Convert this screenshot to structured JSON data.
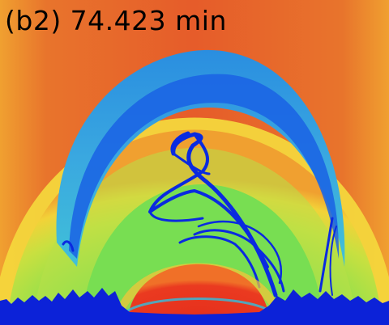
{
  "panel": {
    "label": "(b2) 74.423 min"
  },
  "palette": {
    "outer": "#e35a2a",
    "warm": "#f08a2a",
    "yellow": "#f4d43a",
    "green": "#74dc55",
    "cyan": "#38c8d8",
    "blue": "#1040e0",
    "deep_blue": "#0a1ad8",
    "core_red": "#e8321e"
  }
}
